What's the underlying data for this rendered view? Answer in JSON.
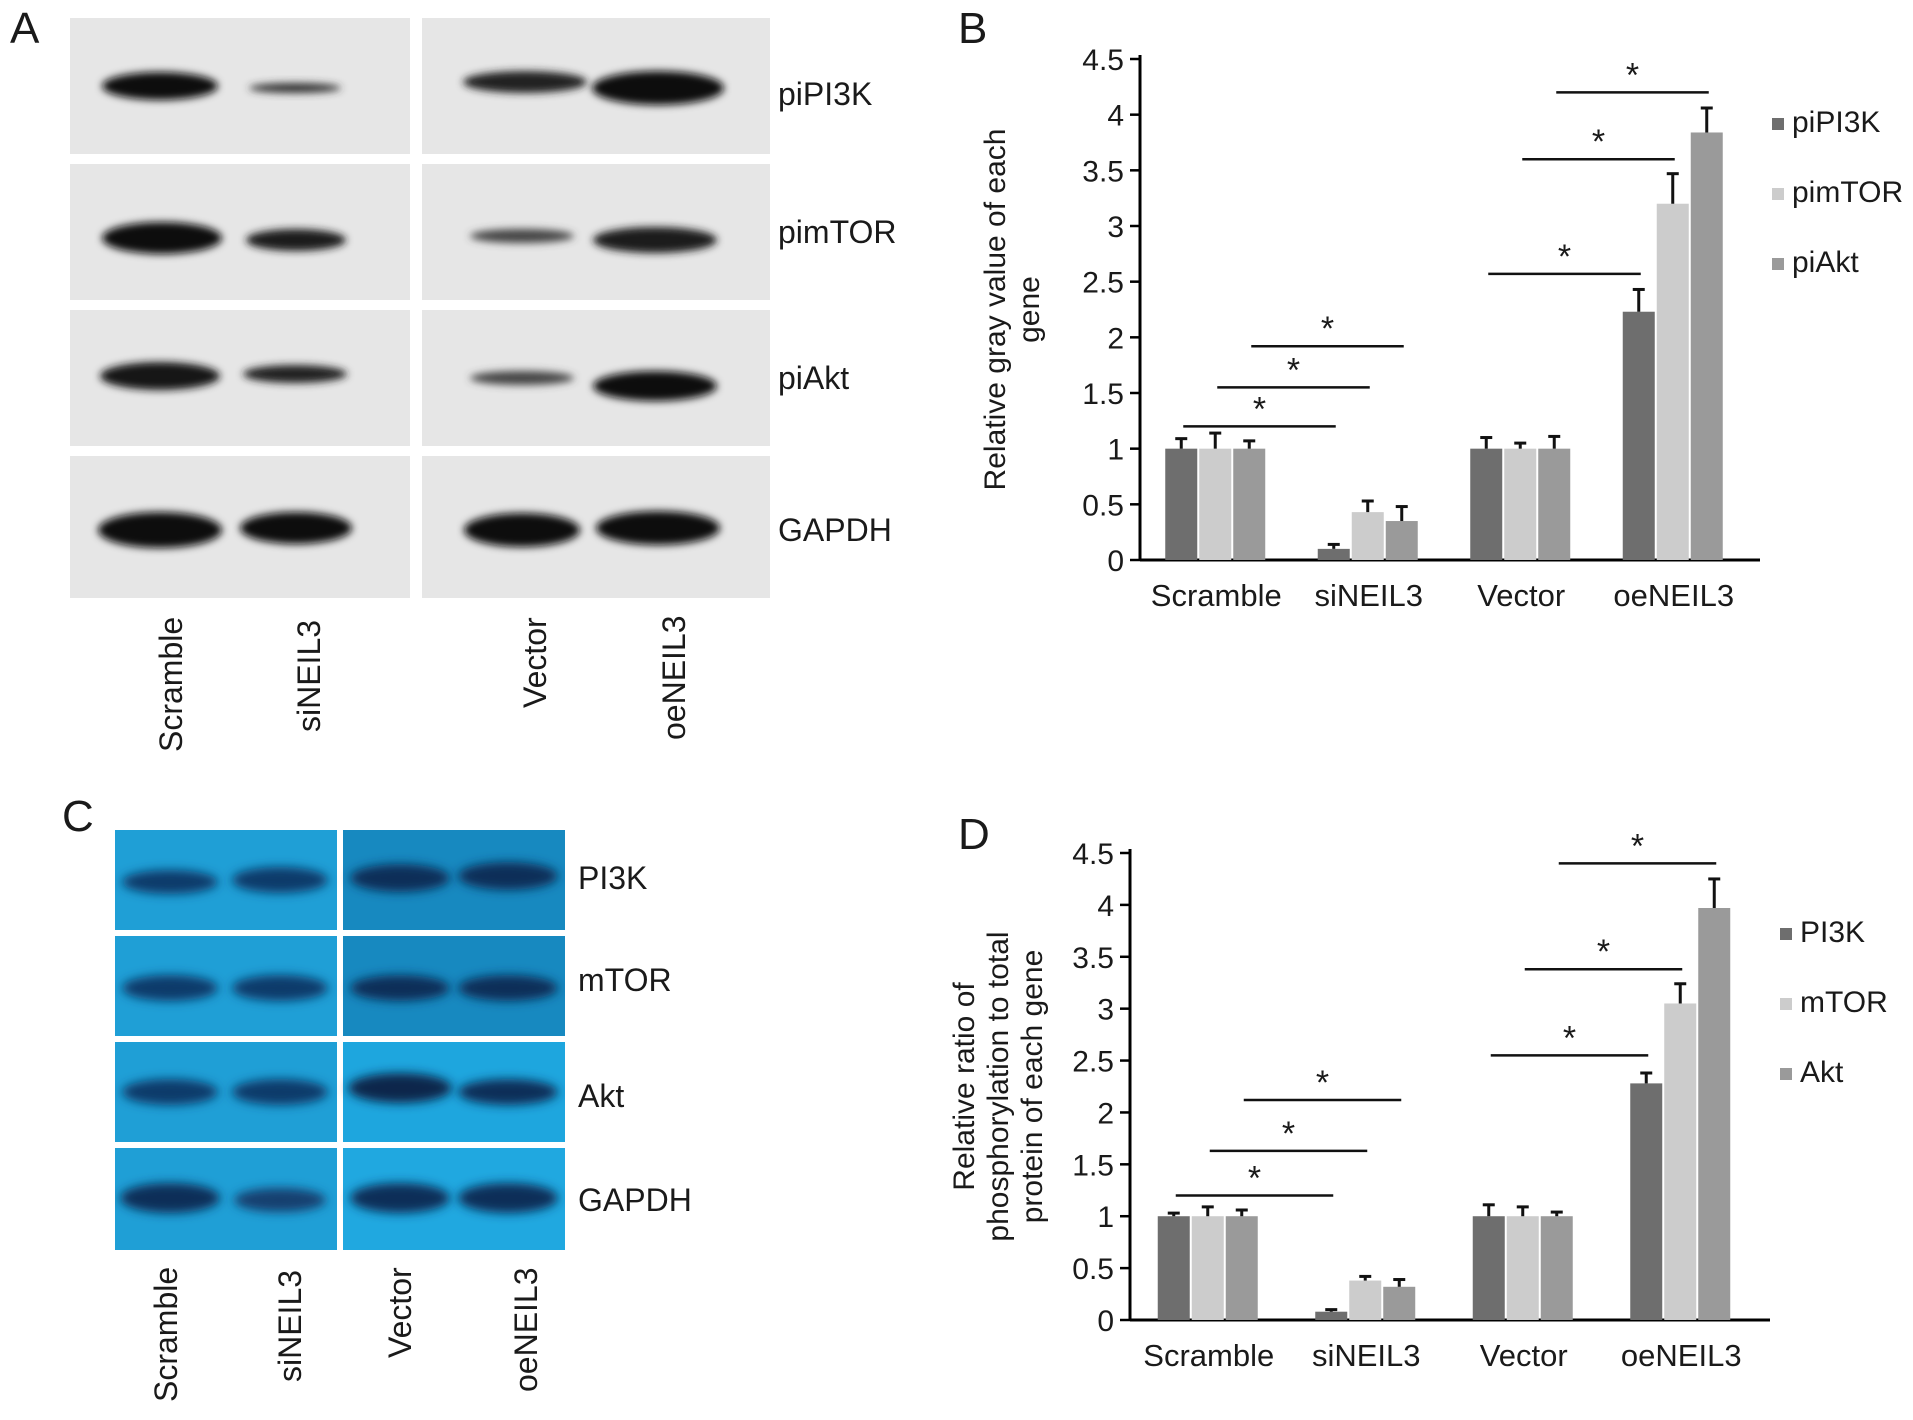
{
  "figure": {
    "panels": {
      "A": {
        "letter": "A",
        "band_labels": [
          "piPI3K",
          "pimTOR",
          "piAkt",
          "GAPDH"
        ],
        "lane_labels": [
          "Scramble",
          "siNEIL3",
          "Vector",
          "oeNEIL3"
        ]
      },
      "B": {
        "letter": "B"
      },
      "C": {
        "letter": "C",
        "band_labels": [
          "PI3K",
          "mTOR",
          "Akt",
          "GAPDH"
        ],
        "lane_labels": [
          "Scramble",
          "siNEIL3",
          "Vector",
          "oeNEIL3"
        ]
      },
      "D": {
        "letter": "D"
      }
    },
    "colors": {
      "series1": "#6e6e6e",
      "series2": "#cccccc",
      "series3": "#9a9a9a",
      "blue_blot": "#1f9fd6",
      "grey_blot": "#e6e6e6"
    }
  },
  "chart_data": [
    {
      "panel": "B",
      "type": "bar",
      "categories": [
        "Scramble",
        "siNEIL3",
        "Vector",
        "oeNEIL3"
      ],
      "ylabel": "Relative gray value of each gene",
      "ylim": [
        0,
        4.5
      ],
      "yticks": [
        "0",
        "0.5",
        "1",
        "1.5",
        "2",
        "2.5",
        "3",
        "3.5",
        "4",
        "4.5"
      ],
      "series": [
        {
          "name": "piPI3K",
          "values": [
            1.0,
            0.1,
            1.0,
            2.23
          ],
          "errors": [
            0.09,
            0.04,
            0.1,
            0.2
          ]
        },
        {
          "name": "pimTOR",
          "values": [
            1.0,
            0.43,
            1.0,
            3.2
          ],
          "errors": [
            0.14,
            0.1,
            0.05,
            0.27
          ]
        },
        {
          "name": "piAkt",
          "values": [
            1.0,
            0.35,
            1.0,
            3.84
          ],
          "errors": [
            0.07,
            0.13,
            0.11,
            0.22
          ]
        }
      ],
      "annotations": [
        {
          "text": "*",
          "from": "Scramble",
          "to": "siNEIL3",
          "series": 0,
          "level": 1.2
        },
        {
          "text": "*",
          "from": "Scramble",
          "to": "siNEIL3",
          "series": 1,
          "level": 1.55
        },
        {
          "text": "*",
          "from": "Scramble",
          "to": "siNEIL3",
          "series": 2,
          "level": 1.92
        },
        {
          "text": "*",
          "from": "Vector",
          "to": "oeNEIL3",
          "series": 0,
          "level": 2.57
        },
        {
          "text": "*",
          "from": "Vector",
          "to": "oeNEIL3",
          "series": 1,
          "level": 3.6
        },
        {
          "text": "*",
          "from": "Vector",
          "to": "oeNEIL3",
          "series": 2,
          "level": 4.2
        }
      ],
      "grid": false,
      "legend": "right"
    },
    {
      "panel": "D",
      "type": "bar",
      "categories": [
        "Scramble",
        "siNEIL3",
        "Vector",
        "oeNEIL3"
      ],
      "ylabel": "Relative ratio of phosphorylation to total protein of each gene",
      "ylim": [
        0,
        4.5
      ],
      "yticks": [
        "0",
        "0.5",
        "1",
        "1.5",
        "2",
        "2.5",
        "3",
        "3.5",
        "4",
        "4.5"
      ],
      "series": [
        {
          "name": "PI3K",
          "values": [
            1.0,
            0.08,
            1.0,
            2.28
          ],
          "errors": [
            0.03,
            0.02,
            0.11,
            0.1
          ]
        },
        {
          "name": "mTOR",
          "values": [
            1.0,
            0.38,
            1.0,
            3.05
          ],
          "errors": [
            0.09,
            0.04,
            0.09,
            0.19
          ]
        },
        {
          "name": "Akt",
          "values": [
            1.0,
            0.32,
            1.0,
            3.97
          ],
          "errors": [
            0.06,
            0.07,
            0.04,
            0.28
          ]
        }
      ],
      "annotations": [
        {
          "text": "*",
          "from": "Scramble",
          "to": "siNEIL3",
          "series": 0,
          "level": 1.2
        },
        {
          "text": "*",
          "from": "Scramble",
          "to": "siNEIL3",
          "series": 1,
          "level": 1.63
        },
        {
          "text": "*",
          "from": "Scramble",
          "to": "siNEIL3",
          "series": 2,
          "level": 2.12
        },
        {
          "text": "*",
          "from": "Vector",
          "to": "oeNEIL3",
          "series": 0,
          "level": 2.55
        },
        {
          "text": "*",
          "from": "Vector",
          "to": "oeNEIL3",
          "series": 1,
          "level": 3.38
        },
        {
          "text": "*",
          "from": "Vector",
          "to": "oeNEIL3",
          "series": 2,
          "level": 4.4
        }
      ],
      "grid": false,
      "legend": "right"
    }
  ]
}
